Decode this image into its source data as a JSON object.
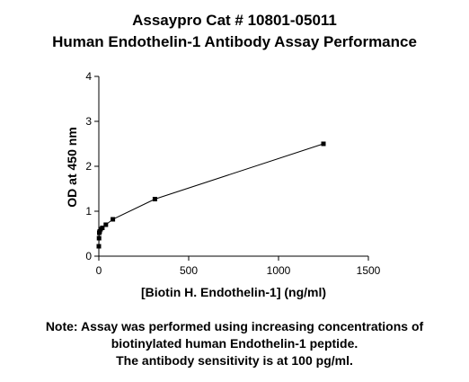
{
  "chart_data": {
    "type": "line",
    "title": "Assaypro Cat # 10801-05011",
    "subtitle": "Human Endothelin-1 Antibody Assay Performance",
    "xlabel": "[Biotin H. Endothelin-1] (ng/ml)",
    "ylabel": "OD at 450 nm",
    "xlim": [
      0,
      1500
    ],
    "ylim": [
      0,
      4
    ],
    "xticks": [
      0,
      500,
      1000,
      1500
    ],
    "yticks": [
      0,
      1,
      2,
      3,
      4
    ],
    "grid": false,
    "legend": "none",
    "marker": "square",
    "color": "#000000",
    "series": [
      {
        "x": [
          0,
          1.2,
          2.4,
          4.9,
          9.8,
          19.5,
          39,
          78,
          312,
          1250
        ],
        "y": [
          0.22,
          0.4,
          0.52,
          0.55,
          0.6,
          0.63,
          0.7,
          0.82,
          1.27,
          2.5
        ]
      }
    ]
  },
  "note": {
    "line1": "Note: Assay was performed using increasing concentrations of",
    "line2": "biotinylated human Endothelin-1 peptide.",
    "line3": "The antibody sensitivity is at 100 pg/ml."
  }
}
